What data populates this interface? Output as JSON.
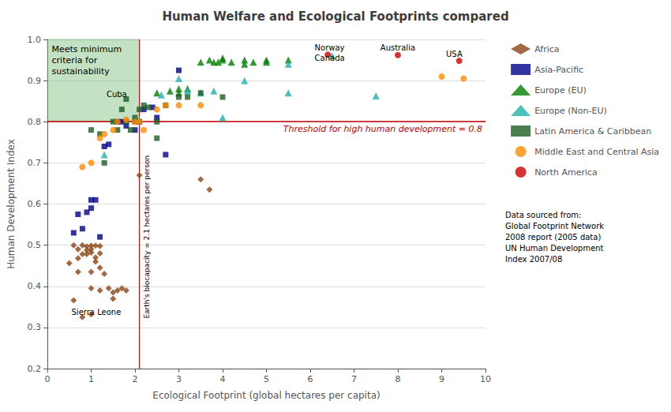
{
  "chart_data": {
    "type": "scatter",
    "title": "Human Welfare and Ecological Footprints compared",
    "xlabel": "Ecological Footprint (global hectares per capita)",
    "ylabel": "Human Development Index",
    "xlim": [
      0.0,
      10.0
    ],
    "ylim": [
      0.2,
      1.0
    ],
    "xticks": [
      0,
      1,
      2,
      3,
      4,
      5,
      6,
      7,
      8,
      9,
      10
    ],
    "yticks": [
      0.2,
      0.3,
      0.4,
      0.5,
      0.6,
      0.7,
      0.8,
      0.9,
      {
        "value": 1.0,
        "label": "1.0"
      }
    ],
    "grid": "y",
    "legend": "right",
    "series": [
      {
        "name": "Africa",
        "color": "#8B4513",
        "marker": "diamond",
        "x": [
          0.5,
          0.6,
          0.6,
          0.7,
          0.7,
          0.7,
          0.8,
          0.8,
          0.8,
          0.9,
          0.9,
          0.9,
          1.0,
          1.0,
          1.0,
          1.0,
          1.0,
          1.0,
          1.1,
          1.1,
          1.1,
          1.2,
          1.2,
          1.2,
          1.2,
          1.3,
          1.4,
          1.5,
          1.5,
          1.6,
          1.7,
          1.8,
          2.1,
          3.5,
          3.7
        ],
        "values": [
          0.456,
          0.366,
          0.5,
          0.49,
          0.468,
          0.435,
          0.5,
          0.478,
          0.325,
          0.497,
          0.488,
          0.478,
          0.499,
          0.49,
          0.482,
          0.435,
          0.395,
          0.332,
          0.499,
          0.47,
          0.46,
          0.498,
          0.48,
          0.445,
          0.39,
          0.43,
          0.395,
          0.385,
          0.37,
          0.39,
          0.395,
          0.39,
          0.67,
          0.66,
          0.635
        ]
      },
      {
        "name": "Asia-Pacific",
        "color": "#00008B",
        "marker": "square",
        "x": [
          0.6,
          0.7,
          0.8,
          0.9,
          1.0,
          1.0,
          1.1,
          1.2,
          1.3,
          1.4,
          1.6,
          1.7,
          1.8,
          2.0,
          2.1,
          2.2,
          2.4,
          2.5,
          2.7,
          3.0
        ],
        "values": [
          0.53,
          0.575,
          0.54,
          0.58,
          0.61,
          0.59,
          0.61,
          0.52,
          0.74,
          0.745,
          0.8,
          0.8,
          0.79,
          0.78,
          0.8,
          0.83,
          0.835,
          0.81,
          0.72,
          0.925
        ]
      },
      {
        "name": "Europe (EU)",
        "color": "#008000",
        "marker": "triangle",
        "x": [
          2.5,
          2.8,
          3.0,
          3.0,
          3.2,
          3.5,
          3.7,
          3.8,
          3.9,
          4.0,
          4.0,
          4.2,
          4.5,
          4.5,
          4.7,
          5.0,
          5.5,
          5.0
        ],
        "values": [
          0.87,
          0.875,
          0.88,
          0.87,
          0.88,
          0.945,
          0.95,
          0.945,
          0.945,
          0.955,
          0.95,
          0.945,
          0.95,
          0.94,
          0.945,
          0.95,
          0.95,
          0.945
        ]
      },
      {
        "name": "Europe (Non-EU)",
        "color": "#20B2AA",
        "marker": "triangle",
        "x": [
          1.3,
          2.1,
          2.6,
          3.0,
          3.2,
          3.5,
          3.8,
          4.0,
          4.5,
          5.5,
          5.5,
          6.5,
          7.5
        ],
        "values": [
          0.72,
          0.805,
          0.865,
          0.905,
          0.875,
          0.87,
          0.875,
          0.81,
          0.9,
          0.94,
          0.87,
          0.96,
          0.863
        ]
      },
      {
        "name": "Latin America & Caribbean",
        "color": "#1B5E20",
        "marker": "square",
        "x": [
          1.0,
          1.2,
          1.3,
          1.5,
          1.6,
          1.7,
          1.8,
          1.9,
          2.0,
          2.0,
          2.1,
          2.2,
          2.3,
          2.5,
          2.5,
          2.7,
          3.0,
          3.2,
          3.5,
          4.0,
          1.8
        ],
        "values": [
          0.78,
          0.77,
          0.7,
          0.8,
          0.78,
          0.83,
          0.8,
          0.78,
          0.8,
          0.81,
          0.83,
          0.84,
          0.835,
          0.8,
          0.76,
          0.84,
          0.86,
          0.86,
          0.87,
          0.86,
          0.855
        ]
      },
      {
        "name": "Middle East and Central Asia",
        "color": "#FF8C00",
        "marker": "circle",
        "x": [
          0.8,
          1.0,
          1.2,
          1.3,
          1.5,
          1.6,
          1.8,
          2.0,
          2.1,
          2.2,
          2.5,
          2.7,
          3.0,
          3.5,
          9.0,
          9.5
        ],
        "values": [
          0.69,
          0.7,
          0.76,
          0.77,
          0.78,
          0.8,
          0.805,
          0.8,
          0.8,
          0.78,
          0.83,
          0.84,
          0.84,
          0.84,
          0.91,
          0.905
        ]
      },
      {
        "name": "North America",
        "color": "#CC0000",
        "marker": "circle",
        "x": [
          6.4,
          8.0,
          9.4
        ],
        "values": [
          0.963,
          0.962,
          0.948
        ]
      }
    ],
    "reference_lines": [
      {
        "axis": "x",
        "value": 2.1,
        "color": "#DD0000",
        "label": "Earth's biocapacity = 2.1 hectares per person"
      },
      {
        "axis": "y",
        "value": 0.8,
        "color": "#C00000",
        "label": "Threshold for high human development = 0.8"
      }
    ],
    "regions": [
      {
        "x": [
          0.0,
          2.1
        ],
        "y": [
          0.8,
          1.0
        ],
        "color": "#7abf7a",
        "label": "Meets minimum\ncriteria for\nsustainability"
      }
    ],
    "annotations": [
      {
        "text": "Norway",
        "x": 6.1,
        "y": 0.971
      },
      {
        "text": "Canada",
        "x": 6.1,
        "y": 0.958
      },
      {
        "text": "Australia",
        "x": 7.6,
        "y": 0.97
      },
      {
        "text": "USA",
        "x": 9.1,
        "y": 0.955
      },
      {
        "text": "Cuba",
        "x": 1.35,
        "y": 0.858
      },
      {
        "text": "Sierra Leone",
        "x": 0.55,
        "y": 0.328
      }
    ],
    "source": "Data sourced from:\nGlobal Footprint Network\n2008 report (2005 data)\nUN Human Development\nIndex 2007/08"
  }
}
